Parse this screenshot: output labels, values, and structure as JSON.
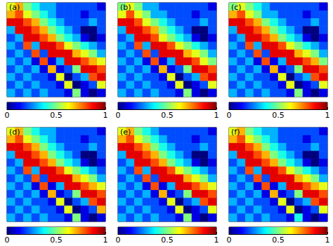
{
  "chart_data": [
    {
      "type": "heatmap",
      "title": "(a)",
      "tick_labels": false,
      "color_range": [
        0,
        1
      ],
      "color_ticks": [
        0,
        0.5,
        1
      ],
      "cells": [
        [
          0.6,
          0.7,
          0.5,
          0.4,
          0.3,
          0.3,
          0.2,
          0.2,
          0.2,
          0.2,
          0.2,
          0.1
        ],
        [
          0.7,
          0.8,
          0.6,
          0.5,
          0.4,
          0.3,
          0.2,
          0.2,
          0.2,
          0.1,
          0.2,
          0.2
        ],
        [
          0.9,
          0.9,
          0.8,
          0.7,
          0.5,
          0.4,
          0.3,
          0.2,
          0.2,
          0.2,
          0.3,
          0.2
        ],
        [
          0.3,
          0.9,
          0.9,
          0.8,
          0.7,
          0.5,
          0.4,
          0.3,
          0.2,
          0.0,
          0.0,
          0.2
        ],
        [
          0.2,
          0.3,
          0.9,
          0.9,
          0.8,
          0.7,
          0.5,
          0.4,
          0.3,
          0.1,
          0.0,
          0.1
        ],
        [
          0.3,
          0.2,
          0.8,
          0.3,
          0.9,
          0.9,
          0.8,
          0.6,
          0.5,
          0.4,
          0.3,
          0.2
        ],
        [
          0.2,
          0.3,
          0.2,
          0.8,
          0.2,
          0.9,
          0.9,
          0.9,
          0.7,
          0.6,
          0.5,
          0.3
        ],
        [
          0.3,
          0.2,
          0.3,
          0.1,
          0.8,
          0.1,
          0.3,
          0.9,
          0.9,
          0.8,
          0.7,
          0.6
        ],
        [
          0.2,
          0.3,
          0.2,
          0.3,
          0.1,
          0.7,
          0.1,
          0.2,
          0.5,
          0.9,
          0.9,
          0.8
        ],
        [
          0.3,
          0.2,
          0.3,
          0.2,
          0.2,
          0.1,
          0.6,
          0.0,
          0.2,
          0.3,
          0.8,
          0.9
        ],
        [
          0.2,
          0.3,
          0.2,
          0.3,
          0.2,
          0.2,
          0.1,
          0.6,
          0.0,
          0.1,
          0.2,
          0.6
        ],
        [
          0.3,
          0.2,
          0.3,
          0.2,
          0.3,
          0.2,
          0.2,
          0.1,
          0.5,
          0.1,
          0.0,
          0.1
        ]
      ]
    },
    {
      "type": "heatmap",
      "title": "(b)",
      "tick_labels": false,
      "color_range": [
        0,
        1
      ],
      "color_ticks": [
        0,
        0.5,
        1
      ],
      "cells": [
        [
          0.5,
          0.6,
          0.5,
          0.3,
          0.3,
          0.2,
          0.2,
          0.2,
          0.2,
          0.2,
          0.2,
          0.1
        ],
        [
          0.6,
          0.8,
          0.6,
          0.5,
          0.3,
          0.3,
          0.2,
          0.2,
          0.2,
          0.1,
          0.2,
          0.2
        ],
        [
          0.9,
          0.9,
          0.8,
          0.6,
          0.5,
          0.4,
          0.3,
          0.2,
          0.2,
          0.2,
          0.3,
          0.2
        ],
        [
          0.3,
          0.9,
          0.9,
          0.8,
          0.7,
          0.5,
          0.4,
          0.3,
          0.2,
          0.0,
          0.0,
          0.2
        ],
        [
          0.2,
          0.3,
          0.9,
          0.9,
          0.8,
          0.6,
          0.5,
          0.4,
          0.3,
          0.1,
          0.0,
          0.1
        ],
        [
          0.3,
          0.2,
          0.8,
          0.3,
          0.9,
          0.9,
          0.8,
          0.6,
          0.5,
          0.4,
          0.3,
          0.2
        ],
        [
          0.2,
          0.3,
          0.2,
          0.8,
          0.2,
          0.9,
          0.9,
          0.9,
          0.7,
          0.6,
          0.5,
          0.3
        ],
        [
          0.3,
          0.2,
          0.3,
          0.1,
          0.8,
          0.1,
          0.3,
          0.9,
          0.9,
          0.8,
          0.6,
          0.5
        ],
        [
          0.2,
          0.3,
          0.2,
          0.3,
          0.1,
          0.7,
          0.1,
          0.2,
          0.5,
          0.9,
          0.9,
          0.8
        ],
        [
          0.3,
          0.2,
          0.3,
          0.2,
          0.2,
          0.1,
          0.6,
          0.0,
          0.2,
          0.3,
          0.8,
          0.9
        ],
        [
          0.2,
          0.3,
          0.2,
          0.3,
          0.2,
          0.2,
          0.1,
          0.6,
          0.0,
          0.1,
          0.2,
          0.6
        ],
        [
          0.3,
          0.2,
          0.3,
          0.2,
          0.3,
          0.2,
          0.2,
          0.1,
          0.5,
          0.1,
          0.0,
          0.1
        ]
      ]
    },
    {
      "type": "heatmap",
      "title": "(c)",
      "tick_labels": false,
      "color_range": [
        0,
        1
      ],
      "color_ticks": [
        0,
        0.5,
        1
      ],
      "cells": [
        [
          0.5,
          0.6,
          0.5,
          0.4,
          0.3,
          0.2,
          0.2,
          0.2,
          0.2,
          0.2,
          0.2,
          0.1
        ],
        [
          0.7,
          0.8,
          0.6,
          0.5,
          0.3,
          0.3,
          0.2,
          0.2,
          0.2,
          0.1,
          0.2,
          0.2
        ],
        [
          0.9,
          0.9,
          0.8,
          0.7,
          0.5,
          0.4,
          0.3,
          0.2,
          0.2,
          0.2,
          0.3,
          0.2
        ],
        [
          0.3,
          0.9,
          0.9,
          0.8,
          0.7,
          0.5,
          0.4,
          0.3,
          0.2,
          0.0,
          0.0,
          0.2
        ],
        [
          0.2,
          0.3,
          0.9,
          0.9,
          0.8,
          0.7,
          0.5,
          0.4,
          0.3,
          0.1,
          0.0,
          0.1
        ],
        [
          0.3,
          0.2,
          0.8,
          0.3,
          0.9,
          0.9,
          0.8,
          0.6,
          0.5,
          0.4,
          0.3,
          0.2
        ],
        [
          0.2,
          0.3,
          0.2,
          0.8,
          0.2,
          0.9,
          0.9,
          0.9,
          0.7,
          0.6,
          0.5,
          0.3
        ],
        [
          0.3,
          0.2,
          0.3,
          0.1,
          0.8,
          0.1,
          0.3,
          0.9,
          0.9,
          0.8,
          0.7,
          0.5
        ],
        [
          0.2,
          0.3,
          0.2,
          0.3,
          0.1,
          0.7,
          0.1,
          0.2,
          0.5,
          0.9,
          0.9,
          0.8
        ],
        [
          0.3,
          0.2,
          0.3,
          0.2,
          0.2,
          0.1,
          0.6,
          0.0,
          0.2,
          0.3,
          0.8,
          0.9
        ],
        [
          0.2,
          0.3,
          0.2,
          0.3,
          0.2,
          0.2,
          0.1,
          0.6,
          0.0,
          0.1,
          0.2,
          0.6
        ],
        [
          0.3,
          0.2,
          0.3,
          0.2,
          0.3,
          0.2,
          0.2,
          0.1,
          0.5,
          0.1,
          0.0,
          0.1
        ]
      ]
    },
    {
      "type": "heatmap",
      "title": "(d)",
      "tick_labels": false,
      "color_range": [
        0,
        1
      ],
      "color_ticks": [
        0,
        0.5,
        1
      ],
      "cells": [
        [
          0.6,
          0.7,
          0.5,
          0.4,
          0.3,
          0.3,
          0.2,
          0.2,
          0.2,
          0.2,
          0.2,
          0.1
        ],
        [
          0.7,
          0.8,
          0.6,
          0.5,
          0.4,
          0.3,
          0.2,
          0.2,
          0.2,
          0.1,
          0.2,
          0.2
        ],
        [
          0.9,
          0.9,
          0.8,
          0.7,
          0.5,
          0.4,
          0.3,
          0.2,
          0.2,
          0.2,
          0.3,
          0.2
        ],
        [
          0.3,
          0.9,
          0.9,
          0.8,
          0.7,
          0.5,
          0.4,
          0.3,
          0.2,
          0.0,
          0.0,
          0.2
        ],
        [
          0.2,
          0.3,
          0.9,
          0.9,
          0.8,
          0.7,
          0.5,
          0.4,
          0.3,
          0.1,
          0.0,
          0.1
        ],
        [
          0.3,
          0.2,
          0.8,
          0.3,
          0.9,
          0.9,
          0.8,
          0.6,
          0.5,
          0.4,
          0.3,
          0.2
        ],
        [
          0.2,
          0.3,
          0.2,
          0.8,
          0.2,
          0.9,
          0.9,
          0.9,
          0.7,
          0.6,
          0.5,
          0.3
        ],
        [
          0.3,
          0.2,
          0.3,
          0.1,
          0.8,
          0.1,
          0.3,
          0.9,
          0.9,
          0.8,
          0.7,
          0.6
        ],
        [
          0.2,
          0.3,
          0.2,
          0.3,
          0.1,
          0.7,
          0.1,
          0.2,
          0.5,
          0.9,
          0.9,
          0.8
        ],
        [
          0.3,
          0.2,
          0.3,
          0.2,
          0.2,
          0.1,
          0.6,
          0.0,
          0.2,
          0.3,
          0.8,
          0.9
        ],
        [
          0.2,
          0.3,
          0.2,
          0.3,
          0.2,
          0.2,
          0.1,
          0.6,
          0.0,
          0.1,
          0.2,
          0.7
        ],
        [
          0.3,
          0.2,
          0.3,
          0.2,
          0.3,
          0.2,
          0.2,
          0.1,
          0.5,
          0.1,
          0.0,
          0.1
        ]
      ]
    },
    {
      "type": "heatmap",
      "title": "(e)",
      "tick_labels": false,
      "color_range": [
        0,
        1
      ],
      "color_ticks": [
        0,
        0.5,
        1
      ],
      "cells": [
        [
          0.6,
          0.7,
          0.5,
          0.4,
          0.3,
          0.2,
          0.2,
          0.2,
          0.2,
          0.2,
          0.2,
          0.1
        ],
        [
          0.7,
          0.8,
          0.6,
          0.5,
          0.4,
          0.3,
          0.2,
          0.2,
          0.2,
          0.1,
          0.2,
          0.2
        ],
        [
          0.9,
          0.9,
          0.8,
          0.7,
          0.5,
          0.4,
          0.3,
          0.2,
          0.2,
          0.2,
          0.3,
          0.2
        ],
        [
          0.3,
          0.9,
          0.9,
          0.8,
          0.7,
          0.5,
          0.4,
          0.3,
          0.2,
          0.0,
          0.0,
          0.2
        ],
        [
          0.2,
          0.3,
          0.9,
          0.9,
          0.8,
          0.7,
          0.5,
          0.4,
          0.3,
          0.1,
          0.0,
          0.1
        ],
        [
          0.3,
          0.2,
          0.8,
          0.3,
          0.9,
          0.9,
          0.8,
          0.6,
          0.5,
          0.4,
          0.3,
          0.2
        ],
        [
          0.2,
          0.3,
          0.2,
          0.8,
          0.2,
          0.9,
          0.9,
          0.9,
          0.7,
          0.6,
          0.5,
          0.3
        ],
        [
          0.3,
          0.2,
          0.3,
          0.1,
          0.8,
          0.1,
          0.3,
          0.9,
          0.9,
          0.8,
          0.7,
          0.6
        ],
        [
          0.2,
          0.3,
          0.2,
          0.3,
          0.1,
          0.7,
          0.1,
          0.2,
          0.5,
          0.9,
          0.9,
          0.8
        ],
        [
          0.3,
          0.2,
          0.3,
          0.2,
          0.2,
          0.1,
          0.6,
          0.0,
          0.2,
          0.3,
          0.8,
          0.9
        ],
        [
          0.2,
          0.3,
          0.2,
          0.3,
          0.2,
          0.2,
          0.1,
          0.6,
          0.0,
          0.1,
          0.2,
          0.6
        ],
        [
          0.3,
          0.2,
          0.3,
          0.2,
          0.3,
          0.2,
          0.2,
          0.1,
          0.5,
          0.1,
          0.0,
          0.1
        ]
      ]
    },
    {
      "type": "heatmap",
      "title": "(f)",
      "tick_labels": false,
      "color_range": [
        0,
        1
      ],
      "color_ticks": [
        0,
        0.5,
        1
      ],
      "cells": [
        [
          0.6,
          0.7,
          0.5,
          0.4,
          0.3,
          0.3,
          0.2,
          0.2,
          0.2,
          0.2,
          0.2,
          0.1
        ],
        [
          0.7,
          0.8,
          0.6,
          0.5,
          0.4,
          0.3,
          0.2,
          0.2,
          0.2,
          0.1,
          0.2,
          0.2
        ],
        [
          0.9,
          0.9,
          0.8,
          0.7,
          0.5,
          0.4,
          0.3,
          0.2,
          0.2,
          0.2,
          0.3,
          0.2
        ],
        [
          0.3,
          0.9,
          0.9,
          0.8,
          0.7,
          0.5,
          0.4,
          0.3,
          0.2,
          0.0,
          0.0,
          0.2
        ],
        [
          0.2,
          0.3,
          0.9,
          0.9,
          0.8,
          0.7,
          0.5,
          0.4,
          0.3,
          0.1,
          0.0,
          0.1
        ],
        [
          0.3,
          0.2,
          0.8,
          0.3,
          0.9,
          0.9,
          0.8,
          0.6,
          0.5,
          0.4,
          0.3,
          0.2
        ],
        [
          0.2,
          0.3,
          0.2,
          0.8,
          0.2,
          0.9,
          0.9,
          0.9,
          0.7,
          0.6,
          0.5,
          0.3
        ],
        [
          0.3,
          0.2,
          0.3,
          0.1,
          0.8,
          0.1,
          0.3,
          0.9,
          0.9,
          0.8,
          0.7,
          0.6
        ],
        [
          0.2,
          0.3,
          0.2,
          0.3,
          0.1,
          0.7,
          0.1,
          0.2,
          0.5,
          0.9,
          0.9,
          0.8
        ],
        [
          0.3,
          0.2,
          0.3,
          0.2,
          0.2,
          0.1,
          0.6,
          0.0,
          0.2,
          0.3,
          0.8,
          0.9
        ],
        [
          0.2,
          0.3,
          0.2,
          0.3,
          0.2,
          0.2,
          0.1,
          0.6,
          0.0,
          0.1,
          0.2,
          0.6
        ],
        [
          0.3,
          0.2,
          0.3,
          0.2,
          0.3,
          0.2,
          0.2,
          0.1,
          0.4,
          0.1,
          0.0,
          0.1
        ]
      ]
    }
  ]
}
